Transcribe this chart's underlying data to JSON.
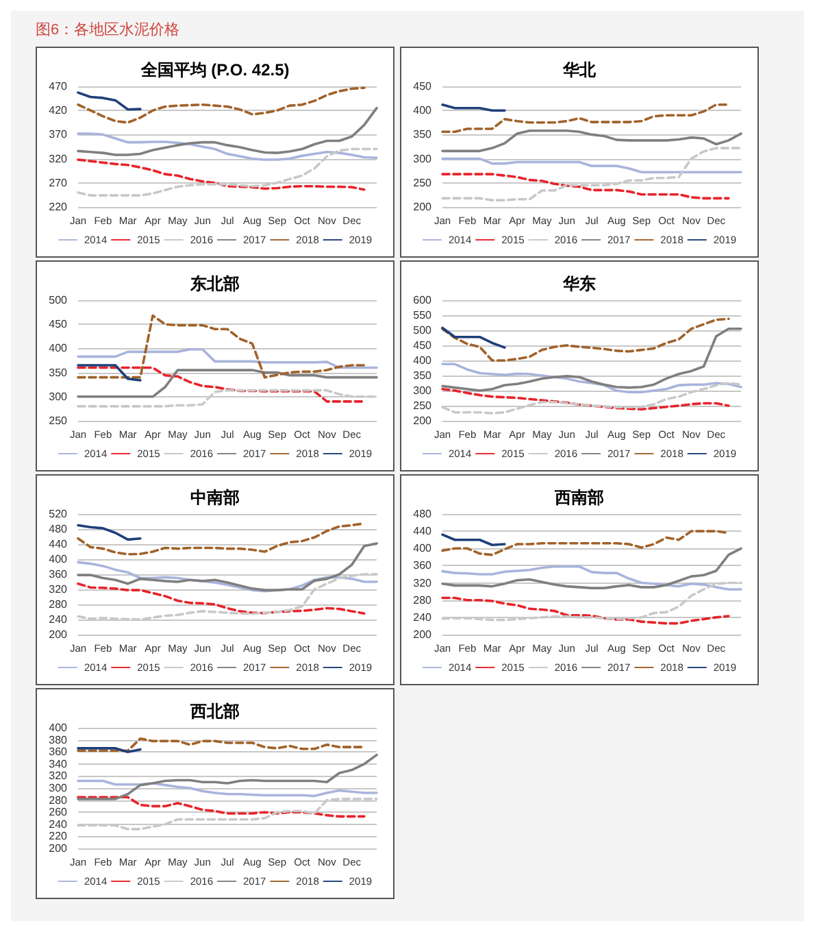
{
  "chart_data": [
    {
      "type": "line",
      "title": "全国平均 (P.O. 42.5)",
      "annotations": [
        "图6：各地区水泥价格"
      ],
      "categories": [
        "Jan",
        null,
        "Feb",
        null,
        "Mar",
        null,
        "Apr",
        null,
        "May",
        null,
        "Jun",
        null,
        "Jul",
        null,
        "Aug",
        null,
        "Sep",
        null,
        "Oct",
        null,
        "Nov",
        null,
        "Dec",
        null,
        null
      ],
      "ylim": [
        220,
        470
      ],
      "yticks": [
        220,
        270,
        320,
        370,
        420,
        470
      ],
      "grid": "y",
      "legend": "bottom",
      "marker": "none",
      "series": [
        {
          "name": "2014",
          "color": "#a9b4dc",
          "line_style": "solid",
          "values": [
            372,
            372,
            370,
            362,
            354,
            354,
            355,
            355,
            353,
            350,
            345,
            340,
            330,
            325,
            320,
            318,
            318,
            320,
            326,
            330,
            334,
            332,
            328,
            323,
            322
          ]
        },
        {
          "name": "2015",
          "color": "#e8232a",
          "line_style": "dashed",
          "values": [
            318,
            315,
            312,
            309,
            307,
            302,
            296,
            288,
            285,
            278,
            273,
            270,
            263,
            262,
            261,
            258,
            259,
            262,
            263,
            263,
            262,
            262,
            261,
            256,
            null
          ]
        },
        {
          "name": "2016",
          "color": "#c8c8c8",
          "line_style": "dashed",
          "values": [
            250,
            244,
            244,
            244,
            244,
            244,
            248,
            255,
            262,
            265,
            267,
            267,
            267,
            265,
            263,
            265,
            270,
            278,
            285,
            300,
            325,
            337,
            340,
            340,
            340
          ]
        },
        {
          "name": "2017",
          "color": "#7f7f7f",
          "line_style": "solid",
          "values": [
            336,
            334,
            332,
            328,
            328,
            330,
            338,
            343,
            348,
            352,
            354,
            354,
            348,
            344,
            338,
            333,
            332,
            335,
            340,
            350,
            357,
            357,
            366,
            390,
            425
          ]
        },
        {
          "name": "2018",
          "color": "#a0622a",
          "line_style": "dashed",
          "values": [
            432,
            420,
            408,
            398,
            395,
            405,
            420,
            428,
            430,
            431,
            432,
            430,
            428,
            422,
            412,
            415,
            420,
            430,
            432,
            440,
            452,
            460,
            465,
            467,
            null
          ]
        },
        {
          "name": "2019",
          "color": "#1f3f7a",
          "line_style": "solid",
          "values": [
            457,
            448,
            446,
            441,
            422,
            423,
            null,
            null,
            null,
            null,
            null,
            null,
            null,
            null,
            null,
            null,
            null,
            null,
            null,
            null,
            null,
            null,
            null,
            null,
            null
          ]
        }
      ]
    },
    {
      "type": "line",
      "title": "华北",
      "categories": [
        "Jan",
        null,
        "Feb",
        null,
        "Mar",
        null,
        "Apr",
        null,
        "May",
        null,
        "Jun",
        null,
        "Jul",
        null,
        "Aug",
        null,
        "Sep",
        null,
        "Oct",
        null,
        "Nov",
        null,
        "Dec",
        null,
        null
      ],
      "ylim": [
        200,
        450
      ],
      "yticks": [
        200,
        250,
        300,
        350,
        400,
        450
      ],
      "grid": "y",
      "legend": "bottom",
      "marker": "none",
      "series": [
        {
          "name": "2014",
          "color": "#a9b4dc",
          "line_style": "solid",
          "values": [
            300,
            300,
            300,
            300,
            290,
            290,
            293,
            293,
            293,
            293,
            293,
            293,
            285,
            285,
            285,
            280,
            272,
            272,
            272,
            272,
            272,
            272,
            272,
            272,
            272
          ]
        },
        {
          "name": "2015",
          "color": "#e8232a",
          "line_style": "dashed",
          "values": [
            268,
            268,
            268,
            268,
            268,
            265,
            262,
            256,
            254,
            248,
            244,
            242,
            235,
            235,
            235,
            232,
            226,
            226,
            226,
            226,
            220,
            218,
            218,
            218,
            null
          ]
        },
        {
          "name": "2016",
          "color": "#c8c8c8",
          "line_style": "dashed",
          "values": [
            218,
            218,
            218,
            218,
            214,
            214,
            216,
            216,
            234,
            234,
            245,
            245,
            245,
            245,
            248,
            255,
            255,
            260,
            260,
            262,
            300,
            315,
            322,
            322,
            322
          ]
        },
        {
          "name": "2017",
          "color": "#7f7f7f",
          "line_style": "solid",
          "values": [
            316,
            316,
            316,
            316,
            322,
            332,
            352,
            358,
            358,
            358,
            358,
            356,
            350,
            347,
            339,
            338,
            338,
            338,
            338,
            340,
            344,
            342,
            330,
            338,
            352
          ]
        },
        {
          "name": "2018",
          "color": "#a0622a",
          "line_style": "dashed",
          "values": [
            356,
            356,
            362,
            362,
            362,
            382,
            378,
            375,
            375,
            375,
            378,
            384,
            376,
            376,
            376,
            376,
            378,
            388,
            390,
            390,
            390,
            398,
            412,
            412,
            null
          ]
        },
        {
          "name": "2019",
          "color": "#1f3f7a",
          "line_style": "solid",
          "values": [
            412,
            405,
            405,
            405,
            400,
            400,
            null,
            null,
            null,
            null,
            null,
            null,
            null,
            null,
            null,
            null,
            null,
            null,
            null,
            null,
            null,
            null,
            null,
            null,
            null
          ]
        }
      ]
    },
    {
      "type": "line",
      "title": "东北部",
      "categories": [
        "Jan",
        null,
        "Feb",
        null,
        "Mar",
        null,
        "Apr",
        null,
        "May",
        null,
        "Jun",
        null,
        "Jul",
        null,
        "Aug",
        null,
        "Sep",
        null,
        "Oct",
        null,
        "Nov",
        null,
        "Dec",
        null,
        null
      ],
      "ylim": [
        250,
        500
      ],
      "yticks": [
        250,
        300,
        350,
        400,
        450,
        500
      ],
      "grid": "y",
      "legend": "bottom",
      "marker": "none",
      "series": [
        {
          "name": "2014",
          "color": "#a9b4dc",
          "line_style": "solid",
          "values": [
            383,
            383,
            383,
            383,
            393,
            393,
            393,
            393,
            393,
            398,
            398,
            373,
            373,
            373,
            373,
            371,
            371,
            371,
            371,
            371,
            372,
            360,
            360,
            360,
            360
          ]
        },
        {
          "name": "2015",
          "color": "#e8232a",
          "line_style": "dashed",
          "values": [
            360,
            360,
            360,
            360,
            360,
            360,
            360,
            344,
            342,
            330,
            322,
            320,
            315,
            312,
            312,
            311,
            311,
            311,
            311,
            311,
            290,
            290,
            290,
            290,
            null
          ]
        },
        {
          "name": "2016",
          "color": "#c8c8c8",
          "line_style": "dashed",
          "values": [
            280,
            280,
            280,
            280,
            280,
            280,
            280,
            280,
            282,
            282,
            284,
            310,
            313,
            313,
            313,
            313,
            313,
            313,
            313,
            313,
            313,
            305,
            300,
            300,
            300
          ]
        },
        {
          "name": "2017",
          "color": "#7f7f7f",
          "line_style": "solid",
          "values": [
            300,
            300,
            300,
            300,
            300,
            300,
            300,
            320,
            355,
            355,
            355,
            355,
            355,
            355,
            355,
            350,
            350,
            344,
            344,
            344,
            340,
            340,
            340,
            340,
            340
          ]
        },
        {
          "name": "2018",
          "color": "#a0622a",
          "line_style": "dashed",
          "values": [
            340,
            340,
            340,
            340,
            340,
            340,
            468,
            450,
            448,
            448,
            448,
            440,
            440,
            420,
            410,
            340,
            345,
            350,
            352,
            352,
            355,
            362,
            365,
            365,
            null
          ]
        },
        {
          "name": "2019",
          "color": "#1f3f7a",
          "line_style": "solid",
          "values": [
            365,
            365,
            365,
            365,
            337,
            334,
            null,
            null,
            null,
            null,
            null,
            null,
            null,
            null,
            null,
            null,
            null,
            null,
            null,
            null,
            null,
            null,
            null,
            null,
            null
          ]
        }
      ]
    },
    {
      "type": "line",
      "title": "华东",
      "categories": [
        "Jan",
        null,
        "Feb",
        null,
        "Mar",
        null,
        "Apr",
        null,
        "May",
        null,
        "Jun",
        null,
        "Jul",
        null,
        "Aug",
        null,
        "Sep",
        null,
        "Oct",
        null,
        "Nov",
        null,
        "Dec",
        null,
        null
      ],
      "ylim": [
        200,
        600
      ],
      "yticks": [
        200,
        250,
        300,
        350,
        400,
        450,
        500,
        550,
        600
      ],
      "grid": "y",
      "legend": "bottom",
      "marker": "none",
      "series": [
        {
          "name": "2014",
          "color": "#a9b4dc",
          "line_style": "solid",
          "values": [
            388,
            388,
            370,
            358,
            355,
            352,
            356,
            355,
            350,
            345,
            340,
            330,
            325,
            318,
            300,
            295,
            295,
            300,
            305,
            318,
            320,
            320,
            325,
            322,
            312
          ]
        },
        {
          "name": "2015",
          "color": "#e8232a",
          "line_style": "dashed",
          "values": [
            305,
            300,
            292,
            285,
            280,
            278,
            276,
            272,
            268,
            264,
            260,
            254,
            250,
            246,
            242,
            240,
            238,
            242,
            246,
            250,
            255,
            258,
            258,
            250,
            null
          ]
        },
        {
          "name": "2016",
          "color": "#c8c8c8",
          "line_style": "dashed",
          "values": [
            245,
            228,
            228,
            228,
            225,
            228,
            240,
            252,
            262,
            262,
            258,
            255,
            250,
            248,
            245,
            245,
            246,
            255,
            272,
            280,
            295,
            305,
            318,
            325,
            320
          ]
        },
        {
          "name": "2017",
          "color": "#7f7f7f",
          "line_style": "solid",
          "values": [
            315,
            310,
            305,
            300,
            305,
            318,
            322,
            330,
            340,
            345,
            348,
            345,
            330,
            320,
            312,
            310,
            312,
            320,
            340,
            355,
            365,
            380,
            480,
            505,
            505
          ]
        },
        {
          "name": "2018",
          "color": "#a0622a",
          "line_style": "dashed",
          "values": [
            505,
            475,
            455,
            445,
            400,
            400,
            405,
            412,
            435,
            445,
            450,
            445,
            442,
            438,
            432,
            430,
            435,
            440,
            458,
            470,
            505,
            520,
            535,
            538,
            null
          ]
        },
        {
          "name": "2019",
          "color": "#1f3f7a",
          "line_style": "solid",
          "values": [
            508,
            478,
            478,
            478,
            458,
            443,
            null,
            null,
            null,
            null,
            null,
            null,
            null,
            null,
            null,
            null,
            null,
            null,
            null,
            null,
            null,
            null,
            null,
            null,
            null
          ]
        }
      ]
    },
    {
      "type": "line",
      "title": "中南部",
      "categories": [
        "Jan",
        null,
        "Feb",
        null,
        "Mar",
        null,
        "Apr",
        null,
        "May",
        null,
        "Jun",
        null,
        "Jul",
        null,
        "Aug",
        null,
        "Sep",
        null,
        "Oct",
        null,
        "Nov",
        null,
        "Dec",
        null,
        null
      ],
      "ylim": [
        200,
        520
      ],
      "yticks": [
        200,
        240,
        280,
        320,
        360,
        400,
        440,
        480,
        520
      ],
      "grid": "y",
      "legend": "bottom",
      "marker": "none",
      "series": [
        {
          "name": "2014",
          "color": "#a9b4dc",
          "line_style": "solid",
          "values": [
            392,
            388,
            382,
            372,
            365,
            350,
            350,
            352,
            350,
            345,
            342,
            338,
            332,
            325,
            318,
            315,
            318,
            320,
            330,
            345,
            352,
            352,
            348,
            340,
            340
          ]
        },
        {
          "name": "2015",
          "color": "#e8232a",
          "line_style": "dashed",
          "values": [
            335,
            325,
            324,
            322,
            318,
            318,
            310,
            302,
            290,
            284,
            283,
            280,
            270,
            262,
            258,
            257,
            260,
            262,
            263,
            266,
            270,
            268,
            262,
            256,
            null
          ]
        },
        {
          "name": "2016",
          "color": "#c8c8c8",
          "line_style": "dashed",
          "values": [
            248,
            242,
            244,
            242,
            241,
            240,
            245,
            250,
            252,
            258,
            262,
            260,
            258,
            256,
            255,
            258,
            260,
            265,
            275,
            320,
            335,
            350,
            356,
            360,
            360
          ]
        },
        {
          "name": "2017",
          "color": "#7f7f7f",
          "line_style": "solid",
          "values": [
            358,
            358,
            350,
            345,
            335,
            348,
            345,
            342,
            340,
            345,
            342,
            345,
            338,
            330,
            322,
            318,
            318,
            320,
            320,
            343,
            348,
            360,
            385,
            435,
            442
          ]
        },
        {
          "name": "2018",
          "color": "#a0622a",
          "line_style": "dashed",
          "values": [
            455,
            432,
            428,
            418,
            413,
            414,
            420,
            430,
            428,
            430,
            430,
            430,
            428,
            428,
            425,
            420,
            435,
            445,
            448,
            458,
            475,
            487,
            490,
            495,
            null
          ]
        },
        {
          "name": "2019",
          "color": "#1f3f7a",
          "line_style": "solid",
          "values": [
            490,
            485,
            482,
            470,
            452,
            455,
            null,
            null,
            null,
            null,
            null,
            null,
            null,
            null,
            null,
            null,
            null,
            null,
            null,
            null,
            null,
            null,
            null,
            null,
            null
          ]
        }
      ]
    },
    {
      "type": "line",
      "title": "西南部",
      "categories": [
        "Jan",
        null,
        "Feb",
        null,
        "Mar",
        null,
        "Apr",
        null,
        "May",
        null,
        "Jun",
        null,
        "Jul",
        null,
        "Aug",
        null,
        "Sep",
        null,
        "Oct",
        null,
        "Nov",
        null,
        "Dec",
        null,
        null
      ],
      "ylim": [
        200,
        480
      ],
      "yticks": [
        200,
        240,
        280,
        320,
        360,
        400,
        440,
        480
      ],
      "grid": "y",
      "legend": "bottom",
      "marker": "none",
      "series": [
        {
          "name": "2014",
          "color": "#a9b4dc",
          "line_style": "solid",
          "values": [
            347,
            343,
            342,
            340,
            340,
            346,
            348,
            350,
            355,
            358,
            358,
            358,
            345,
            343,
            343,
            330,
            320,
            318,
            315,
            312,
            318,
            316,
            310,
            305,
            305
          ]
        },
        {
          "name": "2015",
          "color": "#e8232a",
          "line_style": "dashed",
          "values": [
            285,
            285,
            280,
            280,
            278,
            272,
            268,
            260,
            258,
            255,
            245,
            245,
            244,
            238,
            235,
            235,
            230,
            228,
            226,
            226,
            232,
            236,
            240,
            243,
            null
          ]
        },
        {
          "name": "2016",
          "color": "#c8c8c8",
          "line_style": "dashed",
          "values": [
            237,
            238,
            238,
            236,
            234,
            234,
            236,
            238,
            240,
            242,
            242,
            240,
            240,
            238,
            236,
            238,
            240,
            250,
            252,
            265,
            290,
            305,
            318,
            320,
            320
          ]
        },
        {
          "name": "2017",
          "color": "#7f7f7f",
          "line_style": "solid",
          "values": [
            318,
            314,
            314,
            314,
            312,
            318,
            326,
            328,
            322,
            316,
            312,
            310,
            308,
            308,
            312,
            315,
            310,
            310,
            315,
            325,
            335,
            338,
            348,
            385,
            400
          ]
        },
        {
          "name": "2018",
          "color": "#a0622a",
          "line_style": "dashed",
          "values": [
            395,
            400,
            400,
            388,
            385,
            398,
            410,
            410,
            412,
            412,
            412,
            412,
            412,
            412,
            412,
            410,
            402,
            410,
            425,
            420,
            440,
            440,
            440,
            436,
            null
          ]
        },
        {
          "name": "2019",
          "color": "#1f3f7a",
          "line_style": "solid",
          "values": [
            432,
            420,
            420,
            420,
            408,
            410,
            null,
            null,
            null,
            null,
            null,
            null,
            null,
            null,
            null,
            null,
            null,
            null,
            null,
            null,
            null,
            null,
            null,
            null,
            null
          ]
        }
      ]
    },
    {
      "type": "line",
      "title": "西北部",
      "categories": [
        "Jan",
        null,
        "Feb",
        null,
        "Mar",
        null,
        "Apr",
        null,
        "May",
        null,
        "Jun",
        null,
        "Jul",
        null,
        "Aug",
        null,
        "Sep",
        null,
        "Oct",
        null,
        "Nov",
        null,
        "Dec",
        null,
        null
      ],
      "ylim": [
        200,
        400
      ],
      "yticks": [
        200,
        220,
        240,
        260,
        280,
        300,
        320,
        340,
        360,
        380,
        400
      ],
      "grid": "y",
      "legend": "bottom",
      "marker": "none",
      "series": [
        {
          "name": "2014",
          "color": "#a9b4dc",
          "line_style": "solid",
          "values": [
            312,
            312,
            312,
            306,
            306,
            306,
            308,
            305,
            302,
            300,
            295,
            292,
            290,
            290,
            289,
            288,
            288,
            288,
            288,
            287,
            292,
            296,
            294,
            292,
            292
          ]
        },
        {
          "name": "2015",
          "color": "#e8232a",
          "line_style": "dashed",
          "values": [
            285,
            285,
            285,
            285,
            285,
            272,
            270,
            270,
            275,
            270,
            264,
            262,
            258,
            258,
            258,
            260,
            258,
            260,
            260,
            258,
            255,
            253,
            253,
            253,
            null
          ]
        },
        {
          "name": "2016",
          "color": "#c8c8c8",
          "line_style": "dashed",
          "values": [
            238,
            238,
            238,
            238,
            232,
            232,
            236,
            240,
            248,
            248,
            248,
            248,
            248,
            248,
            248,
            250,
            260,
            262,
            262,
            258,
            280,
            282,
            282,
            282,
            282
          ]
        },
        {
          "name": "2017",
          "color": "#7f7f7f",
          "line_style": "solid",
          "values": [
            282,
            282,
            282,
            282,
            290,
            305,
            308,
            312,
            313,
            313,
            310,
            310,
            308,
            312,
            313,
            312,
            312,
            312,
            312,
            312,
            310,
            325,
            330,
            340,
            355
          ]
        },
        {
          "name": "2018",
          "color": "#a0622a",
          "line_style": "dashed",
          "values": [
            362,
            362,
            362,
            362,
            362,
            382,
            378,
            378,
            378,
            372,
            378,
            378,
            375,
            375,
            375,
            368,
            366,
            370,
            365,
            365,
            372,
            368,
            368,
            368,
            null
          ]
        },
        {
          "name": "2019",
          "color": "#1f3f7a",
          "line_style": "solid",
          "values": [
            366,
            366,
            366,
            366,
            360,
            364,
            null,
            null,
            null,
            null,
            null,
            null,
            null,
            null,
            null,
            null,
            null,
            null,
            null,
            null,
            null,
            null,
            null,
            null,
            null
          ]
        }
      ]
    }
  ]
}
